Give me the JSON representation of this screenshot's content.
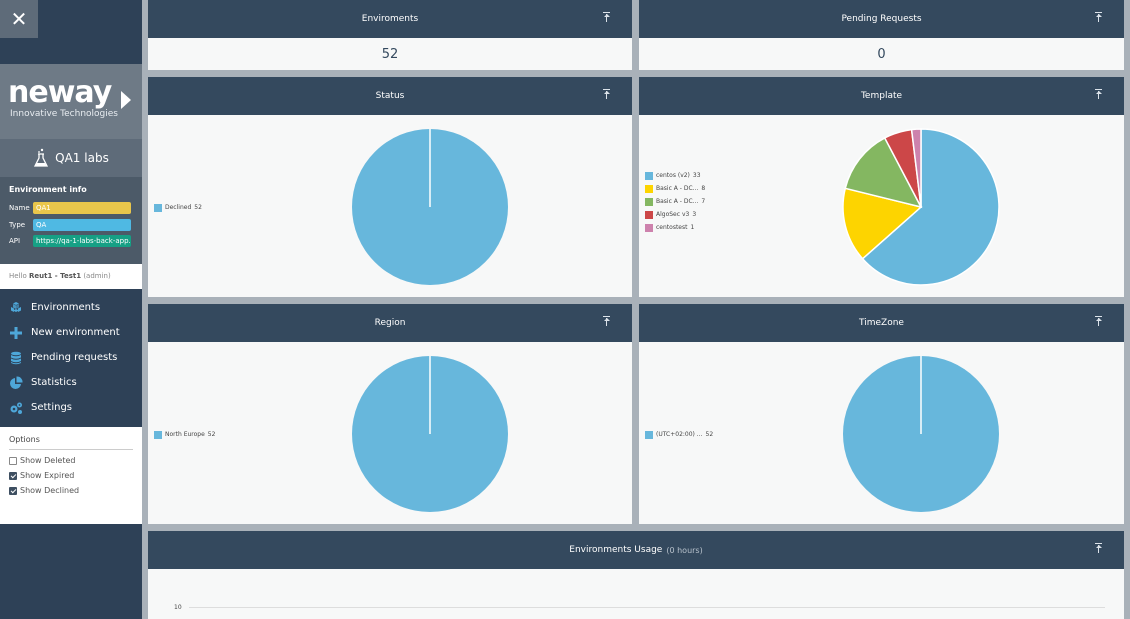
{
  "sidebar": {
    "close_label": "✕",
    "logo_word": "neway",
    "logo_sub": "Innovative Technologies",
    "lab_name": "QA1 labs",
    "env_info": {
      "title": "Environment info",
      "name_label": "Name",
      "name_value": "QA1",
      "type_label": "Type",
      "type_value": "QA",
      "api_label": "API",
      "api_value": "https://qa-1-labs-back-app...."
    },
    "hello": {
      "greeting": "Hello",
      "user": "Reut1 - Test1",
      "role": "(admin)"
    },
    "nav": [
      {
        "label": "Environments",
        "icon": "cubes-icon"
      },
      {
        "label": "New environment",
        "icon": "plus-icon"
      },
      {
        "label": "Pending requests",
        "icon": "database-icon"
      },
      {
        "label": "Statistics",
        "icon": "pie-chart-icon"
      },
      {
        "label": "Settings",
        "icon": "gears-icon"
      }
    ],
    "options": {
      "title": "Options",
      "items": [
        {
          "label": "Show Deleted",
          "checked": false
        },
        {
          "label": "Show Expired",
          "checked": true
        },
        {
          "label": "Show Declined",
          "checked": true
        }
      ]
    }
  },
  "panels": {
    "environments": {
      "title": "Enviroments",
      "value": "52"
    },
    "pending": {
      "title": "Pending Requests",
      "value": "0"
    },
    "status": {
      "title": "Status"
    },
    "template": {
      "title": "Template"
    },
    "region": {
      "title": "Region"
    },
    "timezone": {
      "title": "TimeZone"
    },
    "usage": {
      "title": "Environments Usage",
      "subtitle": "(0 hours)",
      "y_tick": "10"
    }
  },
  "colors": {
    "sidebar_bg": "#2e4157",
    "panel_header": "#34495e",
    "name_badge": "#e9c64b",
    "type_badge": "#4fb9e3",
    "api_badge": "#16a085",
    "pie_blue": "#67b7dc"
  },
  "chart_data": [
    {
      "type": "pie",
      "title": "Status",
      "series": [
        {
          "name": "Declined",
          "values": [
            52
          ]
        }
      ],
      "categories": [
        "Declined"
      ],
      "values": [
        52
      ],
      "colors": [
        "#67b7dc"
      ],
      "legend": "left"
    },
    {
      "type": "pie",
      "title": "Template",
      "categories": [
        "centos (v2)",
        "Basic A - DC...",
        "Basic A - DC...",
        "AlgoSec v3",
        "centostest"
      ],
      "values": [
        33,
        8,
        7,
        3,
        1
      ],
      "colors": [
        "#67b7dc",
        "#fdd400",
        "#84b761",
        "#cc4748",
        "#cd82ad"
      ],
      "legend": "left"
    },
    {
      "type": "pie",
      "title": "Region",
      "categories": [
        "North Europe"
      ],
      "values": [
        52
      ],
      "colors": [
        "#67b7dc"
      ],
      "legend": "left"
    },
    {
      "type": "pie",
      "title": "TimeZone",
      "categories": [
        "(UTC+02:00) ..."
      ],
      "values": [
        52
      ],
      "colors": [
        "#67b7dc"
      ],
      "legend": "left"
    }
  ]
}
